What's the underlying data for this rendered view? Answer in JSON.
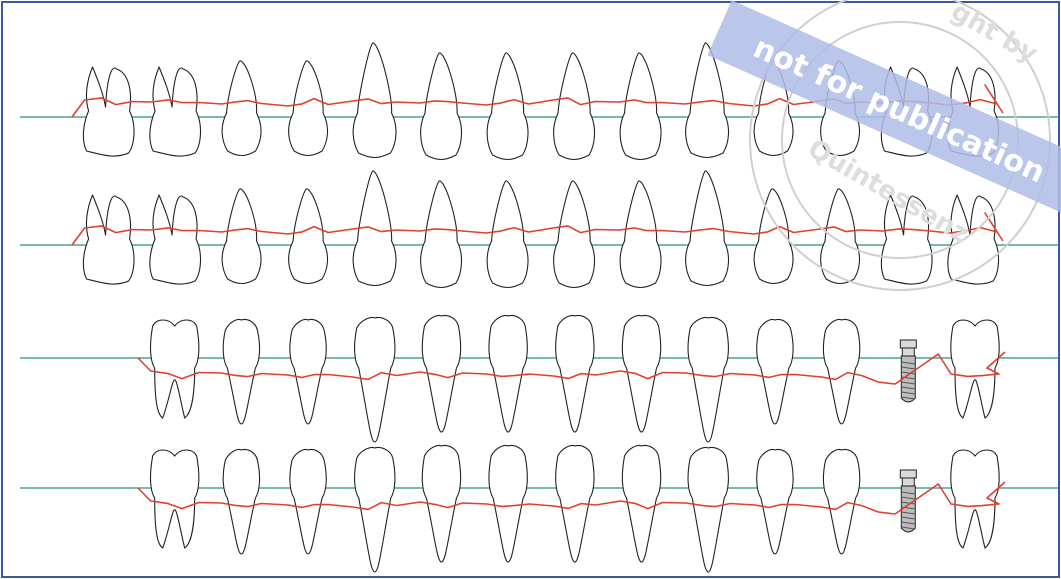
{
  "watermark": {
    "band_text": "not for publication",
    "circle_text_top": "ght by",
    "circle_text_bottom": "Quintessenz"
  },
  "colors": {
    "frame": "#3a5ba0",
    "reference_line": "#4aa493",
    "gingival_margin": "#e0402f",
    "watermark_band": "#aebde6"
  },
  "chart_data": {
    "type": "periodontal-chart",
    "rows": [
      {
        "name": "maxillary-buccal",
        "arch": "upper",
        "teeth": [
          "molar",
          "molar",
          "premolar",
          "premolar",
          "canine",
          "incisor",
          "incisor",
          "incisor",
          "incisor",
          "canine",
          "premolar",
          "premolar",
          "molar",
          "molar"
        ]
      },
      {
        "name": "maxillary-palatal",
        "arch": "upper",
        "teeth": [
          "molar",
          "molar",
          "premolar",
          "premolar",
          "canine",
          "incisor",
          "incisor",
          "incisor",
          "incisor",
          "canine",
          "premolar",
          "premolar",
          "molar",
          "molar"
        ]
      },
      {
        "name": "mandibular-lingual",
        "arch": "lower",
        "teeth": [
          "molar",
          "premolar",
          "premolar",
          "canine",
          "incisor",
          "incisor",
          "incisor",
          "incisor",
          "canine",
          "premolar",
          "premolar",
          "implant",
          "molar"
        ]
      },
      {
        "name": "mandibular-buccal",
        "arch": "lower",
        "teeth": [
          "molar",
          "premolar",
          "premolar",
          "canine",
          "incisor",
          "incisor",
          "incisor",
          "incisor",
          "canine",
          "premolar",
          "premolar",
          "implant",
          "molar"
        ]
      }
    ]
  }
}
